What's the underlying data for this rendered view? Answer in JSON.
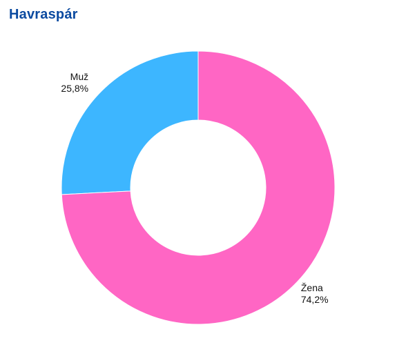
{
  "chart_data": {
    "type": "pie",
    "title": "Havraspár",
    "slices": [
      {
        "label": "Muž",
        "value": 25.8,
        "value_label": "25,8%",
        "color": "#3db6ff"
      },
      {
        "label": "Žena",
        "value": 74.2,
        "value_label": "74,2%",
        "color": "#ff66c4"
      }
    ],
    "donut": true,
    "legend": "none"
  }
}
